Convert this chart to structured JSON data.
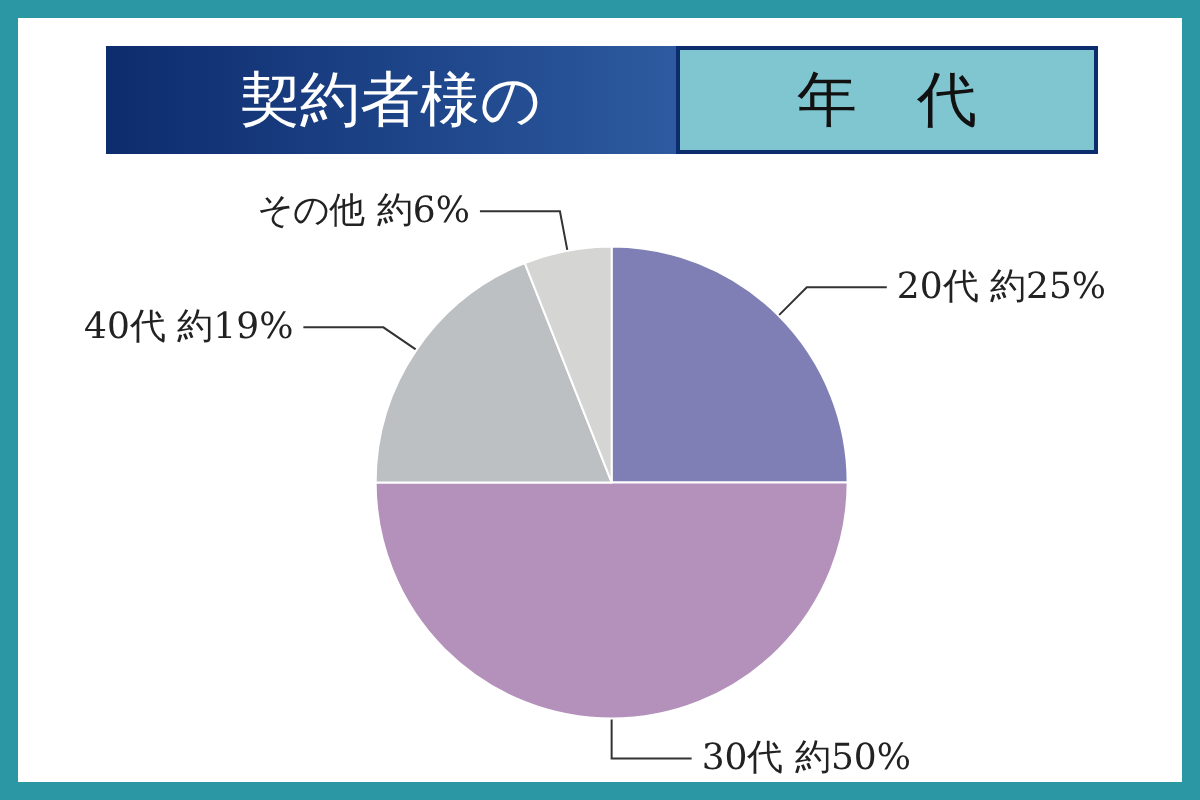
{
  "chart_data": {
    "type": "pie",
    "title": "契約者様の",
    "subtitle": "年　代",
    "categories": [
      "20代",
      "30代",
      "40代",
      "その他"
    ],
    "values": [
      25,
      50,
      19,
      6
    ],
    "value_labels": [
      "約25%",
      "約50%",
      "約19%",
      "約6%"
    ],
    "colors": [
      "#7f7fb5",
      "#b391bb",
      "#bcc0c3",
      "#d5d6d4"
    ],
    "legend": false
  }
}
